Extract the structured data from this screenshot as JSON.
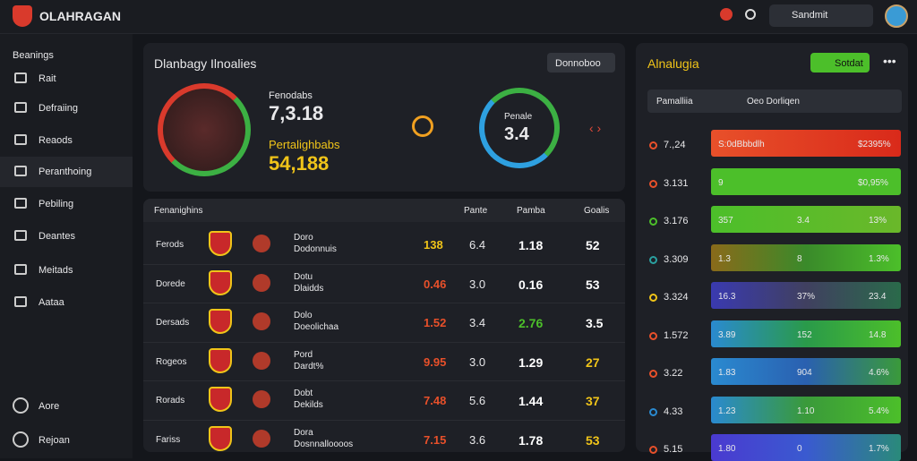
{
  "header": {
    "brand": "OLAHRAGAN",
    "search": "Sandmit"
  },
  "sidebar": {
    "heading": "Beanings",
    "items": [
      "Rait",
      "Defraiing",
      "Reaods",
      "Peranthoing",
      "Pebiling",
      "Deantes",
      "Meitads",
      "Aataa"
    ],
    "bottom": [
      "Aore",
      "Rejoan"
    ]
  },
  "hero": {
    "title": "Dlanbagy Ilnoalies",
    "dropdown": "Donnoboo",
    "stat_label": "Fenodabs",
    "stat_value": "7,3.18",
    "sub_label": "Pertalighbabs",
    "sub_value": "54,188",
    "ring_label": "Penale",
    "ring_value": "3.4"
  },
  "table": {
    "columns": [
      "Fenanighins",
      "Pante",
      "Pamba",
      "Goalis"
    ],
    "rows": [
      [
        "Ferods",
        "Doro",
        "Dodonnuis",
        "138",
        "6.4",
        "1.18",
        "52"
      ],
      [
        "Dorede",
        "Dotu",
        "Dlaidds",
        "0.46",
        "3.0",
        "0.16",
        "53"
      ],
      [
        "Dersads",
        "Dolo",
        "Doeolichaa",
        "1.52",
        "3.4",
        "2.76",
        "3.5"
      ],
      [
        "Rogeos",
        "Pord",
        "Dardt%",
        "9.95",
        "3.0",
        "1.29",
        "27"
      ],
      [
        "Rorads",
        "Dobt",
        "Dekilds",
        "7.48",
        "5.6",
        "1.44",
        "37"
      ],
      [
        "Fariss",
        "Dora",
        "Dosnnalloooos",
        "7.15",
        "3.6",
        "1.78",
        "53"
      ]
    ]
  },
  "panel": {
    "title": "Alnalugia",
    "button": "Sotdat",
    "columns": [
      "Pamalliia",
      "Oeo Dorliqen"
    ],
    "rows": [
      [
        "7.,24",
        "S:0dBbbdlh",
        "$2395%"
      ],
      [
        "3.131",
        "9",
        "$0,95%"
      ],
      [
        "3.176",
        "357",
        "3.4",
        "13%"
      ],
      [
        "3.309",
        "1.3",
        "8",
        "1.3%"
      ],
      [
        "3.324",
        "16.3",
        "37%",
        "23.4"
      ],
      [
        "1.572",
        "3.89",
        "152",
        "14.8"
      ],
      [
        "3.22",
        "1.83",
        "904",
        "4.6%"
      ],
      [
        "4.33",
        "1.23",
        "1.10",
        "5.4%"
      ],
      [
        "5.15",
        "1.80",
        "0",
        "1.7%"
      ]
    ]
  }
}
